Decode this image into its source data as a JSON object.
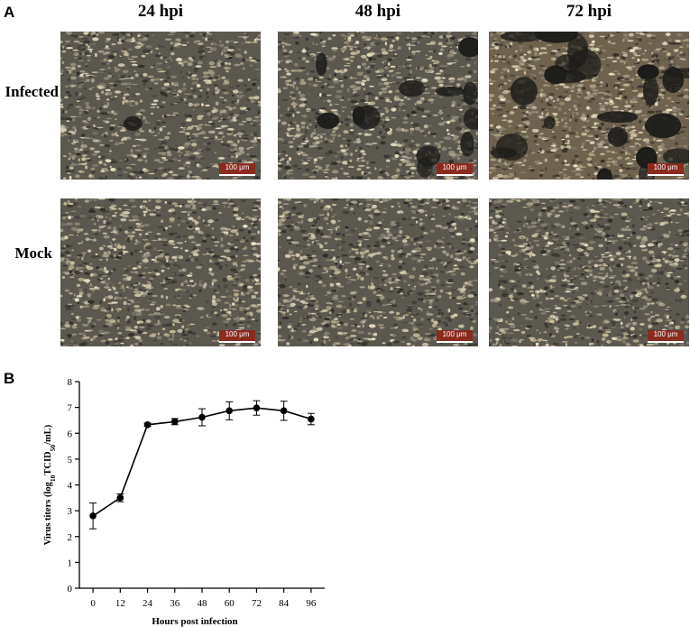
{
  "panelA": {
    "letter": "A",
    "columns": [
      "24 hpi",
      "48 hpi",
      "72 hpi"
    ],
    "rows": [
      "Infected",
      "Mock"
    ],
    "scale_bar": "100 μm",
    "images": [
      {
        "row": "Infected",
        "col": "24 hpi",
        "cpe_level": 0.05
      },
      {
        "row": "Infected",
        "col": "48 hpi",
        "cpe_level": 0.45
      },
      {
        "row": "Infected",
        "col": "72 hpi",
        "cpe_level": 0.85
      },
      {
        "row": "Mock",
        "col": "24 hpi",
        "cpe_level": 0.0
      },
      {
        "row": "Mock",
        "col": "48 hpi",
        "cpe_level": 0.0
      },
      {
        "row": "Mock",
        "col": "72 hpi",
        "cpe_level": 0.0
      }
    ]
  },
  "panelB": {
    "letter": "B"
  },
  "chart_data": {
    "type": "line",
    "x": [
      0,
      12,
      24,
      36,
      48,
      60,
      72,
      84,
      96
    ],
    "series": [
      {
        "values": [
          2.8,
          3.5,
          6.33,
          6.45,
          6.62,
          6.87,
          6.98,
          6.87,
          6.55
        ],
        "error": [
          0.5,
          0.15,
          0.06,
          0.12,
          0.33,
          0.35,
          0.28,
          0.37,
          0.22
        ],
        "color": "#000000"
      }
    ],
    "xlabel": "Hours post infection",
    "ylabel_parts": [
      "Virus titers (log",
      "10",
      "TCID",
      "50",
      "/mL)"
    ],
    "xticks": [
      "0",
      "12",
      "24",
      "36",
      "48",
      "60",
      "72",
      "84",
      "96"
    ],
    "yticks": [
      "0",
      "1",
      "2",
      "3",
      "4",
      "5",
      "6",
      "7",
      "8"
    ],
    "xlim": [
      -6,
      102
    ],
    "ylim": [
      0,
      8
    ],
    "grid": false
  }
}
